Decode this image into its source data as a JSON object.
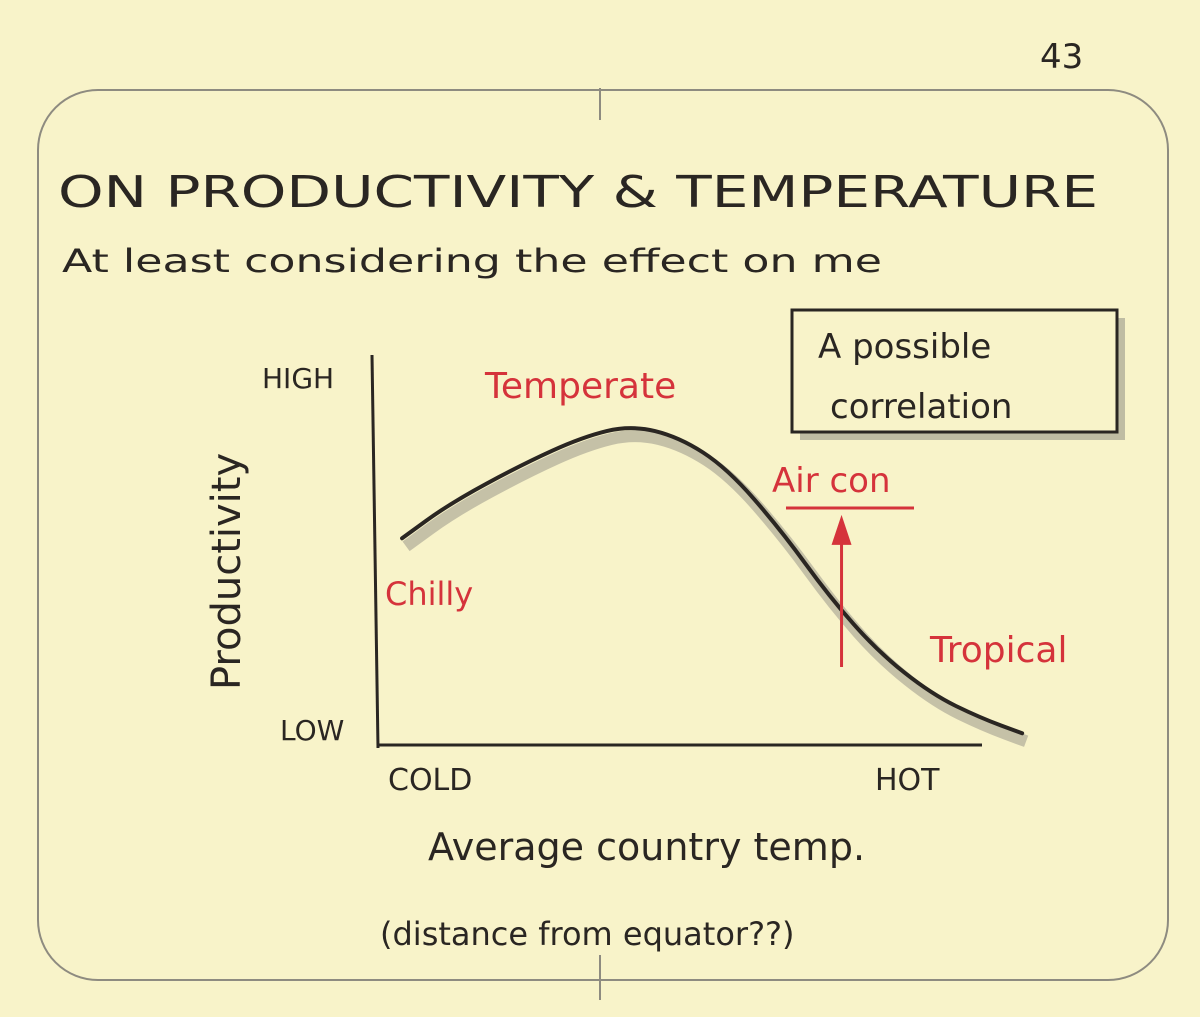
{
  "page_number": "43",
  "title": "ON PRODUCTIVITY & TEMPERATURE",
  "subtitle": "At least considering the effect on me",
  "note_box": {
    "line1": "A possible",
    "line2": "correlation"
  },
  "colors": {
    "ink": "#2a2622",
    "accent": "#d5333b",
    "paper": "#f8f3c9",
    "shadow": "#9a978a"
  },
  "chart_data": {
    "type": "line",
    "xlabel": "Average country temp.",
    "xlabel_note": "(distance from equator??)",
    "ylabel": "Productivity",
    "x_ticks": {
      "low": "COLD",
      "high": "HOT"
    },
    "y_ticks": {
      "low": "LOW",
      "high": "HIGH"
    },
    "xlim": [
      0,
      100
    ],
    "ylim": [
      0,
      100
    ],
    "grid": false,
    "series": [
      {
        "x": [
          4,
          12,
          24,
          34,
          42,
          50,
          58,
          67,
          75,
          83,
          92,
          100,
          107
        ],
        "y": [
          53,
          62,
          72,
          79,
          82,
          79,
          71,
          55,
          38,
          24,
          13,
          7,
          3
        ]
      }
    ],
    "annotations": {
      "chilly": "Chilly",
      "temperate": "Temperate",
      "tropical": "Tropical",
      "aircon": "Air con"
    },
    "aircon_arrow": {
      "x": 77,
      "from_y": 20,
      "to_y": 59
    }
  }
}
